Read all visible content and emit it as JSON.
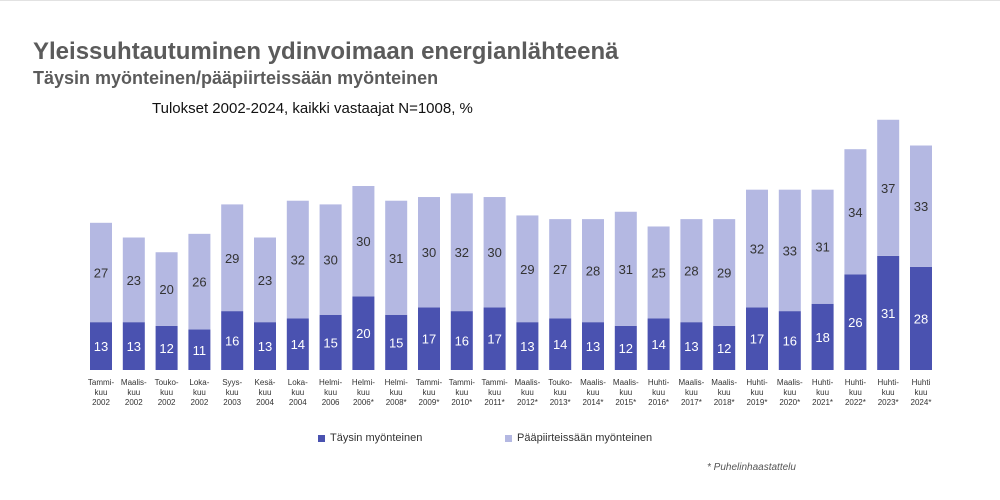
{
  "title": "Yleissuhtautuminen ydinvoimaan energianlähteenä",
  "subtitle": "Täysin myönteinen/pääpiirteissään myönteinen",
  "caption": "Tulokset 2002-2024, kaikki vastaajat N=1008, %",
  "footnote": "* Puhelinhaastattelu",
  "chart_data": {
    "type": "bar",
    "stacked": true,
    "categories": [
      [
        "Tammi-",
        "kuu",
        "2002"
      ],
      [
        "Maalis-",
        "kuu",
        "2002"
      ],
      [
        "Touko-",
        "kuu",
        "2002"
      ],
      [
        "Loka-",
        "kuu",
        "2002"
      ],
      [
        "Syys-",
        "kuu",
        "2003"
      ],
      [
        "Kesä-",
        "kuu",
        "2004"
      ],
      [
        "Loka-",
        "kuu",
        "2004"
      ],
      [
        "Helmi-",
        "kuu",
        "2006"
      ],
      [
        "Helmi-",
        "kuu",
        "2006*"
      ],
      [
        "Helmi-",
        "kuu",
        "2008*"
      ],
      [
        "Tammi-",
        "kuu",
        "2009*"
      ],
      [
        "Tammi-",
        "kuu",
        "2010*"
      ],
      [
        "Tammi-",
        "kuu",
        "2011*"
      ],
      [
        "Maalis-",
        "kuu",
        "2012*"
      ],
      [
        "Touko-",
        "kuu",
        "2013*"
      ],
      [
        "Maalis-",
        "kuu",
        "2014*"
      ],
      [
        "Maalis-",
        "kuu",
        "2015*"
      ],
      [
        "Huhti-",
        "kuu",
        "2016*"
      ],
      [
        "Maalis-",
        "kuu",
        "2017*"
      ],
      [
        "Maalis-",
        "kuu",
        "2018*"
      ],
      [
        "Huhti-",
        "kuu",
        "2019*"
      ],
      [
        "Maalis-",
        "kuu",
        "2020*"
      ],
      [
        "Huhti-",
        "kuu",
        "2021*"
      ],
      [
        "Huhti-",
        "kuu",
        "2022*"
      ],
      [
        "Huhti-",
        "kuu",
        "2023*"
      ],
      [
        "Huhti",
        "kuu",
        "2024*"
      ]
    ],
    "series": [
      {
        "name": "Täysin myönteinen",
        "color": "#4a52b0",
        "values": [
          13,
          13,
          12,
          11,
          16,
          13,
          14,
          15,
          20,
          15,
          17,
          16,
          17,
          13,
          14,
          13,
          12,
          14,
          13,
          12,
          17,
          16,
          18,
          26,
          31,
          28
        ]
      },
      {
        "name": "Pääpiirteissään myönteinen",
        "color": "#b4b8e2",
        "values": [
          27,
          23,
          20,
          26,
          29,
          23,
          32,
          30,
          30,
          31,
          30,
          32,
          30,
          29,
          27,
          28,
          31,
          25,
          28,
          29,
          32,
          33,
          31,
          34,
          37,
          33
        ]
      }
    ],
    "grid": false,
    "legend": "bottom"
  }
}
